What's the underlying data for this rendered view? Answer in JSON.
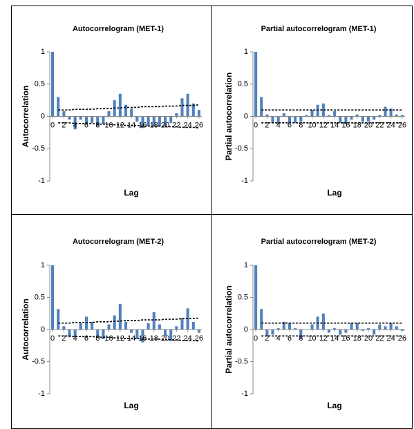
{
  "chart_data": [
    {
      "type": "bar",
      "title": "Autocorrelogram (MET-1)",
      "x_label": "Lag",
      "y_label": "Autocorrelation",
      "x": [
        0,
        1,
        2,
        3,
        4,
        5,
        6,
        7,
        8,
        9,
        10,
        11,
        12,
        13,
        14,
        15,
        16,
        17,
        18,
        19,
        20,
        21,
        22,
        23,
        24,
        25,
        26
      ],
      "values": [
        1,
        0.3,
        0.08,
        -0.05,
        -0.2,
        -0.05,
        -0.1,
        -0.1,
        -0.15,
        -0.12,
        0.08,
        0.25,
        0.35,
        0.18,
        0.12,
        -0.08,
        -0.18,
        -0.15,
        -0.15,
        -0.15,
        -0.15,
        -0.1,
        0.05,
        0.28,
        0.35,
        0.2,
        0.1
      ],
      "upper_bound": [
        null,
        0.1,
        0.1,
        0.1,
        0.11,
        0.11,
        0.11,
        0.11,
        0.12,
        0.12,
        0.12,
        0.13,
        0.13,
        0.14,
        0.14,
        0.14,
        0.15,
        0.15,
        0.15,
        0.15,
        0.16,
        0.16,
        0.16,
        0.17,
        0.17,
        0.17,
        0.18
      ],
      "lower_bound": [
        null,
        -0.1,
        -0.1,
        -0.1,
        -0.11,
        -0.11,
        -0.11,
        -0.11,
        -0.12,
        -0.12,
        -0.12,
        -0.13,
        -0.13,
        -0.14,
        -0.14,
        -0.14,
        -0.15,
        -0.15,
        -0.15,
        -0.15,
        -0.16,
        -0.16,
        -0.16,
        -0.17,
        -0.17,
        -0.17,
        -0.18
      ],
      "color": "#4f81bd",
      "bound_color": "#000000",
      "xlim": [
        -0.5,
        26.5
      ],
      "xticks": [
        0,
        2,
        4,
        6,
        8,
        10,
        12,
        14,
        16,
        18,
        20,
        22,
        24,
        26
      ],
      "ylim": [
        -1,
        1
      ],
      "yticks": [
        1,
        0.5,
        0,
        -0.5,
        -1
      ]
    },
    {
      "type": "bar",
      "title": "Partial autocorrelogram (MET-1)",
      "x_label": "Lag",
      "y_label": "Partial autocorrelation",
      "x": [
        0,
        1,
        2,
        3,
        4,
        5,
        6,
        7,
        8,
        9,
        10,
        11,
        12,
        13,
        14,
        15,
        16,
        17,
        18,
        19,
        20,
        21,
        22,
        23,
        24,
        25,
        26
      ],
      "values": [
        1,
        0.3,
        0.03,
        -0.1,
        -0.12,
        0.05,
        -0.1,
        -0.1,
        -0.08,
        0.02,
        0.1,
        0.18,
        0.2,
        0.02,
        0.08,
        -0.1,
        -0.12,
        -0.05,
        0.03,
        -0.08,
        -0.08,
        -0.05,
        0.02,
        0.15,
        0.12,
        0.03,
        0.02
      ],
      "upper_bound": [
        null,
        0.1,
        0.1,
        0.1,
        0.1,
        0.1,
        0.1,
        0.1,
        0.1,
        0.1,
        0.1,
        0.1,
        0.1,
        0.1,
        0.1,
        0.1,
        0.1,
        0.1,
        0.1,
        0.1,
        0.1,
        0.1,
        0.1,
        0.1,
        0.1,
        0.1,
        0.1
      ],
      "lower_bound": [
        null,
        -0.1,
        -0.1,
        -0.1,
        -0.1,
        -0.1,
        -0.1,
        -0.1,
        -0.1,
        -0.1,
        -0.1,
        -0.1,
        -0.1,
        -0.1,
        -0.1,
        -0.1,
        -0.1,
        -0.1,
        -0.1,
        -0.1,
        -0.1,
        -0.1,
        -0.1,
        -0.1,
        -0.1,
        -0.1,
        -0.1
      ],
      "color": "#4f81bd",
      "bound_color": "#000000",
      "xlim": [
        -0.5,
        26.5
      ],
      "xticks": [
        0,
        2,
        4,
        6,
        8,
        10,
        12,
        14,
        16,
        18,
        20,
        22,
        24,
        26
      ],
      "ylim": [
        -1,
        1
      ],
      "yticks": [
        1,
        0.5,
        0,
        -0.5,
        -1
      ]
    },
    {
      "type": "bar",
      "title": "Autocorrelogram (MET-2)",
      "x_label": "Lag",
      "y_label": "Autocorrelation",
      "x": [
        0,
        1,
        2,
        3,
        4,
        5,
        6,
        7,
        8,
        9,
        10,
        11,
        12,
        13,
        14,
        15,
        16,
        17,
        18,
        19,
        20,
        21,
        22,
        23,
        24,
        25,
        26
      ],
      "values": [
        1,
        0.32,
        0.05,
        -0.12,
        -0.12,
        0.1,
        0.2,
        0.12,
        -0.12,
        -0.15,
        0.08,
        0.22,
        0.4,
        0.12,
        -0.05,
        -0.15,
        -0.2,
        0.1,
        0.27,
        0.08,
        -0.1,
        -0.18,
        0.05,
        0.18,
        0.33,
        0.12,
        -0.05
      ],
      "upper_bound": [
        null,
        0.1,
        0.1,
        0.1,
        0.11,
        0.11,
        0.11,
        0.11,
        0.12,
        0.12,
        0.12,
        0.13,
        0.13,
        0.14,
        0.14,
        0.14,
        0.15,
        0.15,
        0.15,
        0.15,
        0.16,
        0.16,
        0.16,
        0.17,
        0.17,
        0.17,
        0.18
      ],
      "lower_bound": [
        null,
        -0.1,
        -0.1,
        -0.1,
        -0.11,
        -0.11,
        -0.11,
        -0.11,
        -0.12,
        -0.12,
        -0.12,
        -0.13,
        -0.13,
        -0.14,
        -0.14,
        -0.14,
        -0.15,
        -0.15,
        -0.15,
        -0.15,
        -0.16,
        -0.16,
        -0.16,
        -0.17,
        -0.17,
        -0.17,
        -0.18
      ],
      "color": "#4f81bd",
      "bound_color": "#000000",
      "xlim": [
        -0.5,
        26.5
      ],
      "xticks": [
        0,
        2,
        4,
        6,
        8,
        10,
        12,
        14,
        16,
        18,
        20,
        22,
        24,
        26
      ],
      "ylim": [
        -1,
        1
      ],
      "yticks": [
        1,
        0.5,
        0,
        -0.5,
        -1
      ]
    },
    {
      "type": "bar",
      "title": "Partial autocorrelogram (MET-2)",
      "x_label": "Lag",
      "y_label": "Partial autocorrelation",
      "x": [
        0,
        1,
        2,
        3,
        4,
        5,
        6,
        7,
        8,
        9,
        10,
        11,
        12,
        13,
        14,
        15,
        16,
        17,
        18,
        19,
        20,
        21,
        22,
        23,
        24,
        25,
        26
      ],
      "values": [
        1,
        0.32,
        -0.1,
        -0.08,
        0.02,
        0.12,
        0.1,
        0.02,
        -0.15,
        0,
        0.08,
        0.2,
        0.25,
        -0.05,
        0.02,
        -0.08,
        -0.05,
        0.1,
        0.1,
        -0.02,
        0.02,
        -0.08,
        0.08,
        0.05,
        0.1,
        0.05,
        -0.02
      ],
      "upper_bound": [
        null,
        0.1,
        0.1,
        0.1,
        0.1,
        0.1,
        0.1,
        0.1,
        0.1,
        0.1,
        0.1,
        0.1,
        0.1,
        0.1,
        0.1,
        0.1,
        0.1,
        0.1,
        0.1,
        0.1,
        0.1,
        0.1,
        0.1,
        0.1,
        0.1,
        0.1,
        0.1
      ],
      "lower_bound": [
        null,
        -0.1,
        -0.1,
        -0.1,
        -0.1,
        -0.1,
        -0.1,
        -0.1,
        -0.1,
        -0.1,
        -0.1,
        -0.1,
        -0.1,
        -0.1,
        -0.1,
        -0.1,
        -0.1,
        -0.1,
        -0.1,
        -0.1,
        -0.1,
        -0.1,
        -0.1,
        -0.1,
        -0.1,
        -0.1,
        -0.1
      ],
      "color": "#4f81bd",
      "bound_color": "#000000",
      "xlim": [
        -0.5,
        26.5
      ],
      "xticks": [
        0,
        2,
        4,
        6,
        8,
        10,
        12,
        14,
        16,
        18,
        20,
        22,
        24,
        26
      ],
      "ylim": [
        -1,
        1
      ],
      "yticks": [
        1,
        0.5,
        0,
        -0.5,
        -1
      ]
    }
  ]
}
